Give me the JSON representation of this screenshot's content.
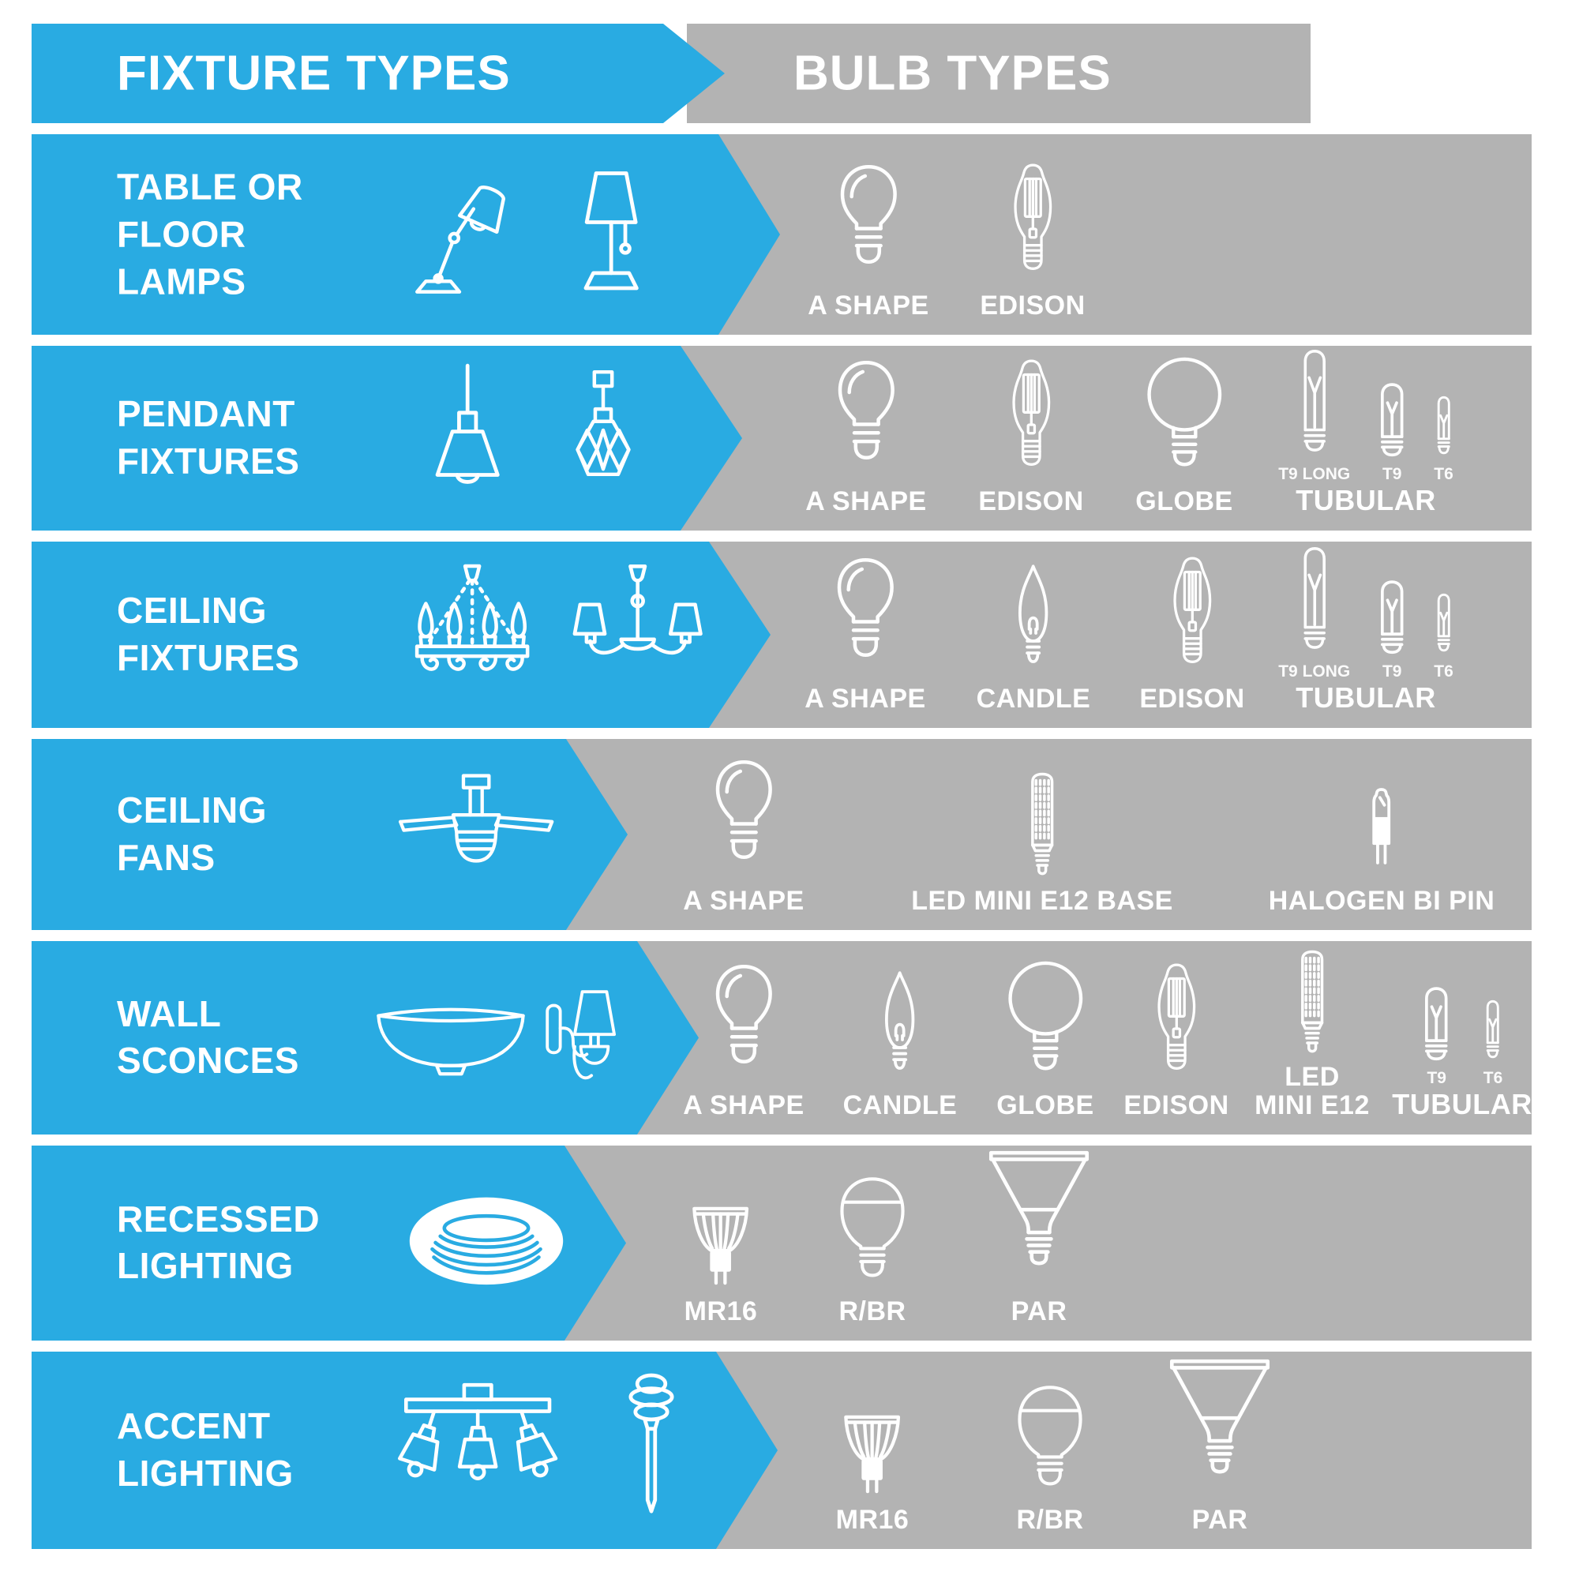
{
  "colors": {
    "arrow_blue": "#29ABE2",
    "band_gray": "#B3B3B3",
    "text_white": "#FFFFFF"
  },
  "header": {
    "fixture_types_label": "FIXTURE TYPES",
    "bulb_types_label": "BULB TYPES"
  },
  "rows": [
    {
      "name": "table-or-floor-lamps",
      "fixture_label_lines": [
        "TABLE OR",
        "FLOOR",
        "LAMPS"
      ],
      "fixture_icons": [
        "desk-lamp-icon",
        "table-lamp-icon"
      ],
      "bulbs": [
        {
          "icon": "a-shape-bulb-icon",
          "label": "A SHAPE"
        },
        {
          "icon": "edison-bulb-icon",
          "label": "EDISON"
        }
      ]
    },
    {
      "name": "pendant-fixtures",
      "fixture_label_lines": [
        "PENDANT",
        "FIXTURES"
      ],
      "fixture_icons": [
        "pendant-cone-icon",
        "pendant-faceted-icon"
      ],
      "bulbs": [
        {
          "icon": "a-shape-bulb-icon",
          "label": "A SHAPE"
        },
        {
          "icon": "edison-bulb-icon",
          "label": "EDISON"
        },
        {
          "icon": "globe-bulb-icon",
          "label": "GLOBE"
        },
        {
          "group_label": "TUBULAR",
          "items": [
            {
              "icon": "tubular-t9-long-bulb-icon",
              "label": "T9 LONG"
            },
            {
              "icon": "tubular-t9-bulb-icon",
              "label": "T9"
            },
            {
              "icon": "tubular-t6-bulb-icon",
              "label": "T6"
            }
          ]
        }
      ]
    },
    {
      "name": "ceiling-fixtures",
      "fixture_label_lines": [
        "CEILING",
        "FIXTURES"
      ],
      "fixture_icons": [
        "chandelier-candle-icon",
        "chandelier-shade-icon"
      ],
      "bulbs": [
        {
          "icon": "a-shape-bulb-icon",
          "label": "A SHAPE"
        },
        {
          "icon": "candle-bulb-icon",
          "label": "CANDLE"
        },
        {
          "icon": "edison-bulb-icon",
          "label": "EDISON"
        },
        {
          "group_label": "TUBULAR",
          "items": [
            {
              "icon": "tubular-t9-long-bulb-icon",
              "label": "T9 LONG"
            },
            {
              "icon": "tubular-t9-bulb-icon",
              "label": "T9"
            },
            {
              "icon": "tubular-t6-bulb-icon",
              "label": "T6"
            }
          ]
        }
      ]
    },
    {
      "name": "ceiling-fans",
      "fixture_label_lines": [
        "CEILING",
        "FANS"
      ],
      "fixture_icons": [
        "ceiling-fan-icon"
      ],
      "bulbs": [
        {
          "icon": "a-shape-bulb-icon",
          "label": "A SHAPE"
        },
        {
          "icon": "led-mini-e12-bulb-icon",
          "label": "LED MINI E12 BASE"
        },
        {
          "icon": "halogen-bi-pin-bulb-icon",
          "label": "HALOGEN BI PIN"
        }
      ]
    },
    {
      "name": "wall-sconces",
      "fixture_label_lines": [
        "WALL",
        "SCONCES"
      ],
      "fixture_icons": [
        "bowl-sconce-icon",
        "wall-lamp-sconce-icon"
      ],
      "bulbs": [
        {
          "icon": "a-shape-bulb-icon",
          "label": "A SHAPE"
        },
        {
          "icon": "candle-bulb-icon",
          "label": "CANDLE"
        },
        {
          "icon": "globe-bulb-icon",
          "label": "GLOBE"
        },
        {
          "icon": "edison-bulb-icon",
          "label": "EDISON"
        },
        {
          "icon": "led-mini-e12-bulb-icon",
          "label_lines": [
            "LED",
            "MINI E12"
          ]
        },
        {
          "group_label": "TUBULAR",
          "items": [
            {
              "icon": "tubular-t9-bulb-icon",
              "label": "T9"
            },
            {
              "icon": "tubular-t6-bulb-icon",
              "label": "T6"
            }
          ]
        }
      ]
    },
    {
      "name": "recessed-lighting",
      "fixture_label_lines": [
        "RECESSED",
        "LIGHTING"
      ],
      "fixture_icons": [
        "recessed-can-icon"
      ],
      "bulbs": [
        {
          "icon": "mr16-bulb-icon",
          "label": "MR16"
        },
        {
          "icon": "r-br-bulb-icon",
          "label": "R/BR"
        },
        {
          "icon": "par-bulb-icon",
          "label": "PAR"
        }
      ]
    },
    {
      "name": "accent-lighting",
      "fixture_label_lines": [
        "ACCENT",
        "LIGHTING"
      ],
      "fixture_icons": [
        "track-light-icon",
        "path-light-icon"
      ],
      "bulbs": [
        {
          "icon": "mr16-bulb-icon",
          "label": "MR16"
        },
        {
          "icon": "r-br-bulb-icon",
          "label": "R/BR"
        },
        {
          "icon": "par-bulb-icon",
          "label": "PAR"
        }
      ]
    }
  ]
}
